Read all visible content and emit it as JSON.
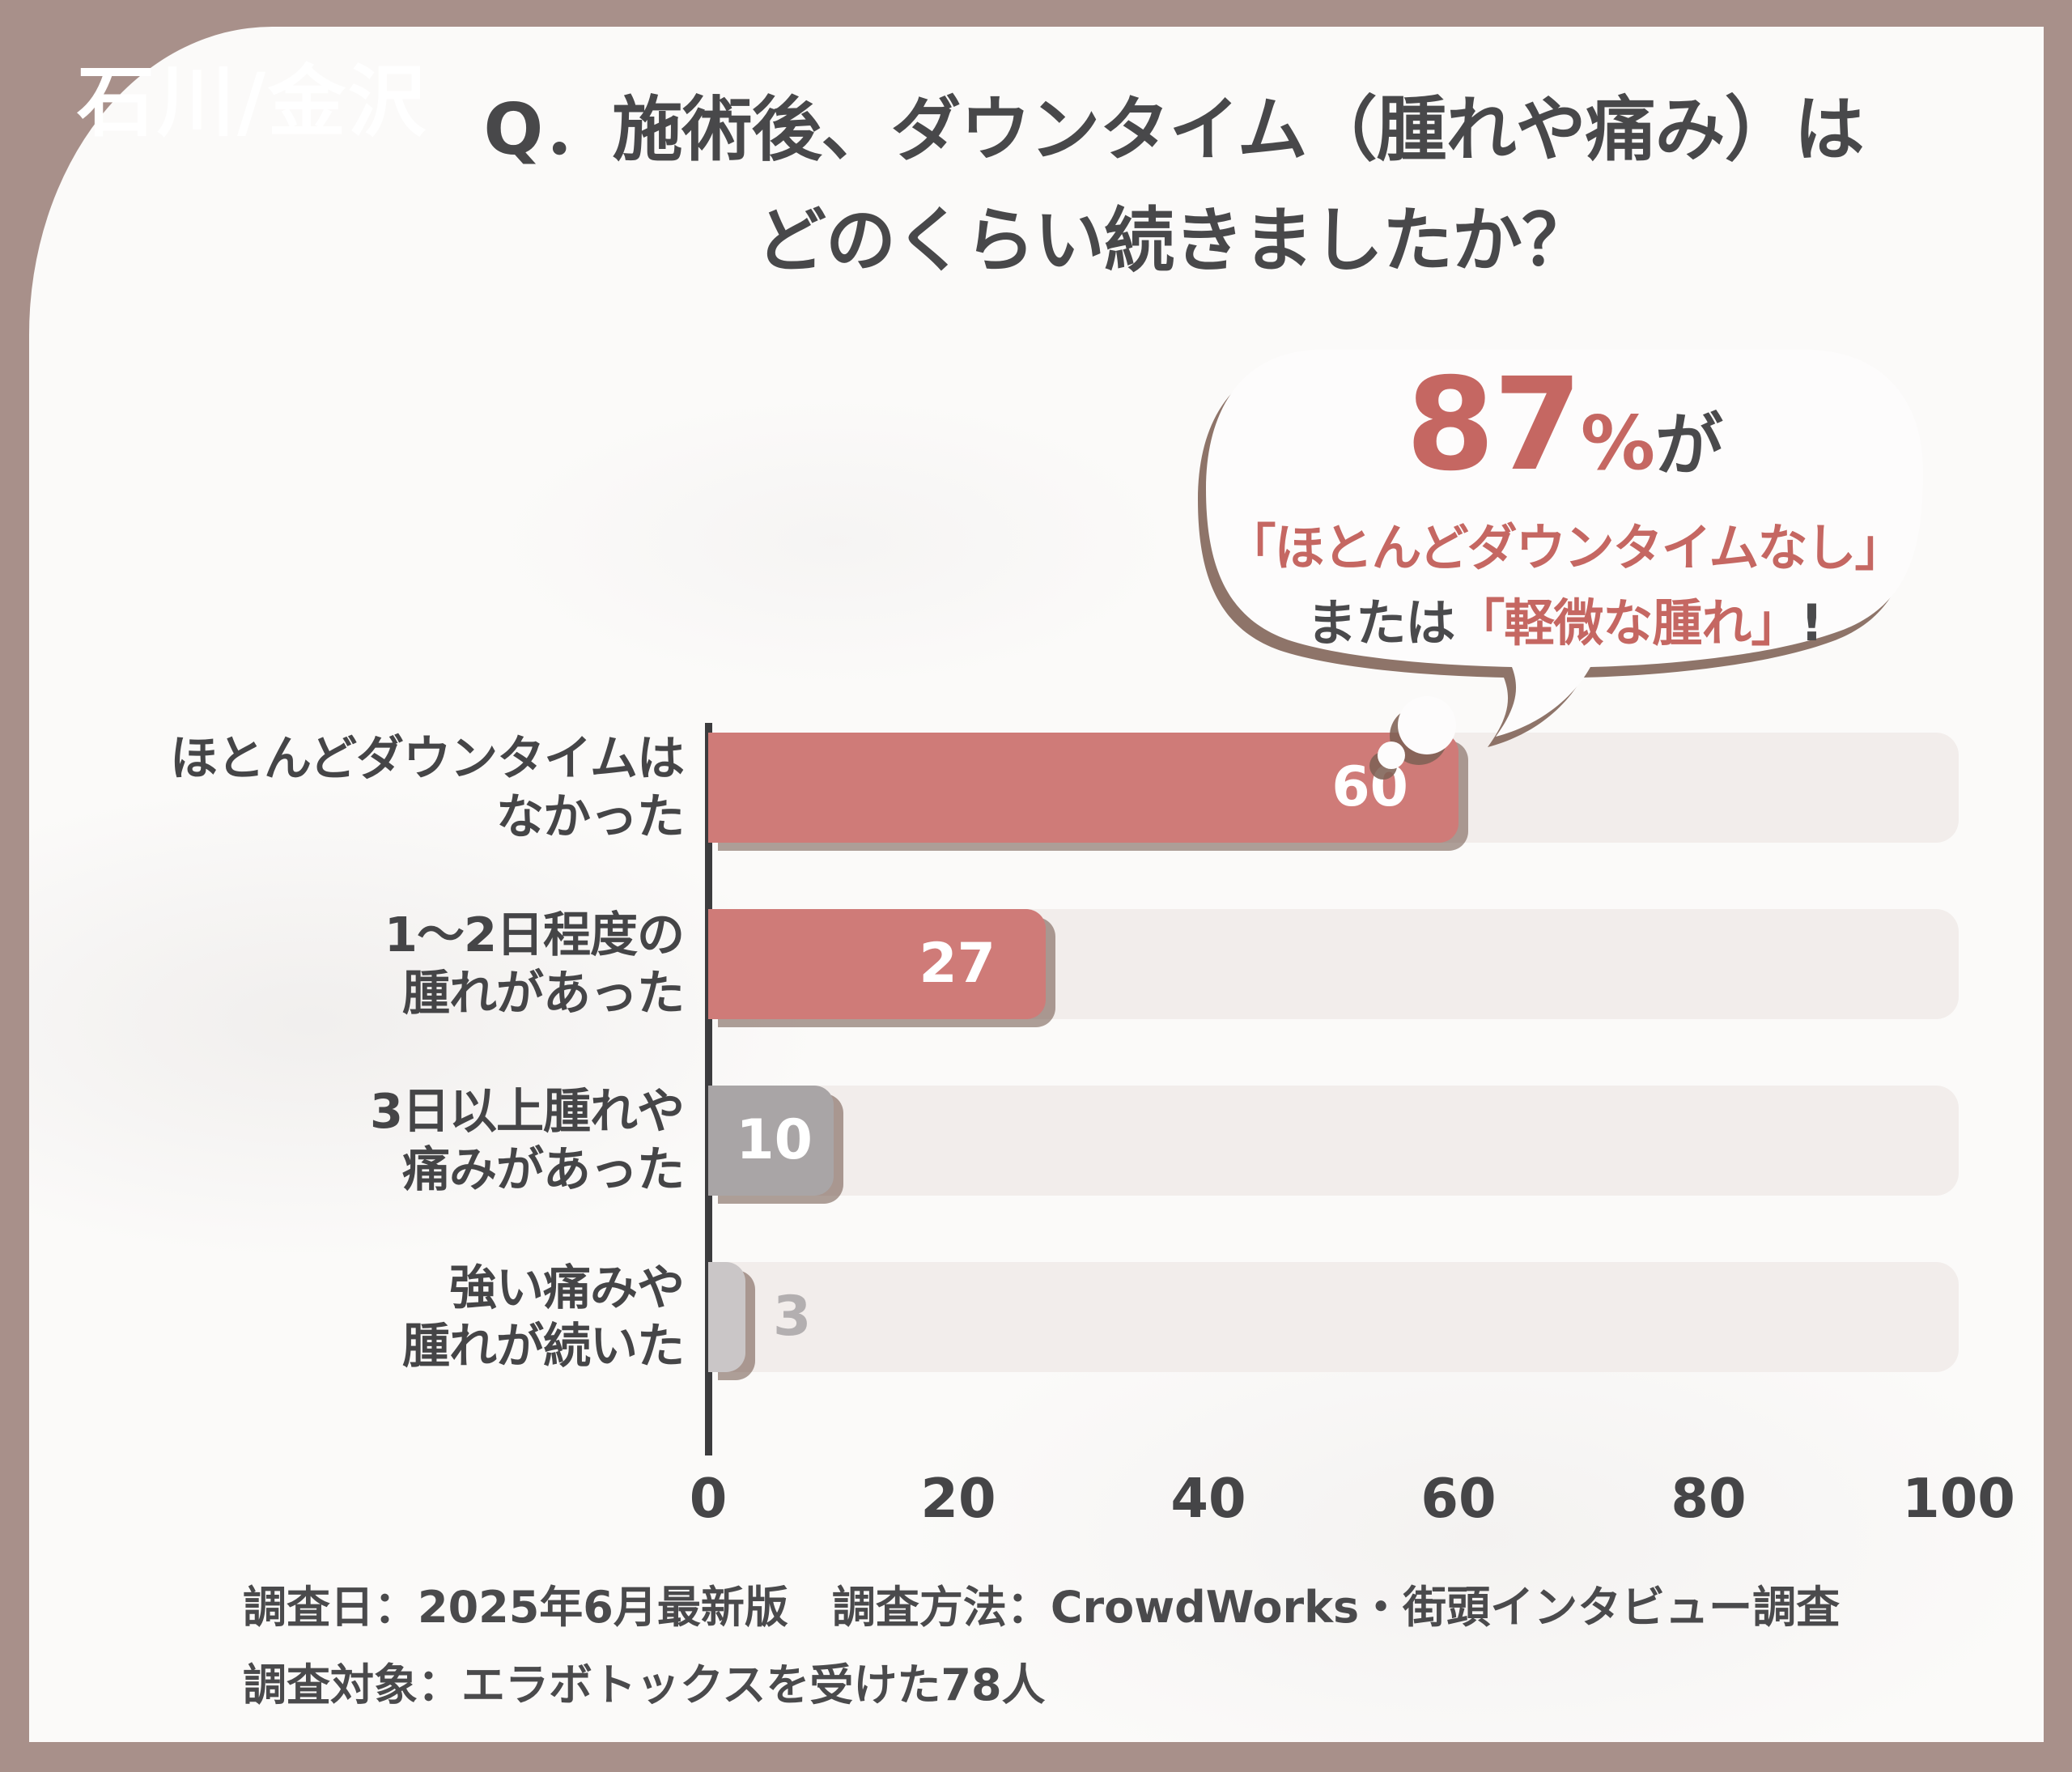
{
  "badge": {
    "label": "石川/金沢"
  },
  "title": {
    "line1": "Q．施術後、ダウンタイム（腫れや痛み）は",
    "line2": "どのくらい続きましたか？"
  },
  "callout": {
    "stat_value": "87",
    "stat_unit": "%",
    "stat_suffix": "が",
    "line2": "「ほとんどダウンタイムなし」",
    "line3_prefix": "または",
    "line3_accent": "「軽微な腫れ」",
    "line3_suffix": "!"
  },
  "chart_data": {
    "type": "bar",
    "orientation": "horizontal",
    "title": "",
    "xlabel": "",
    "ylabel": "",
    "xlim": [
      0,
      100
    ],
    "x_ticks": [
      0,
      20,
      40,
      60,
      80,
      100
    ],
    "grid": false,
    "legend": false,
    "categories": [
      "ほとんどダウンタイムはなかった",
      "1〜2日程度の腫れがあった",
      "3日以上腫れや痛みがあった",
      "強い痛みや腫れが続いた"
    ],
    "categories_lines": [
      [
        "ほとんどダウンタイムは",
        "なかった"
      ],
      [
        "1〜2日程度の",
        "腫れがあった"
      ],
      [
        "3日以上腫れや",
        "痛みがあった"
      ],
      [
        "強い痛みや",
        "腫れが続いた"
      ]
    ],
    "values": [
      60,
      27,
      10,
      3
    ],
    "bar_colors": [
      "#cf7b78",
      "#cf7b78",
      "#a9a5a6",
      "#cac6c7"
    ],
    "value_label_colors": [
      "#ffffff",
      "#ffffff",
      "#ffffff",
      "#b3afb0"
    ],
    "value_label_inside": [
      true,
      true,
      true,
      false
    ]
  },
  "footer": {
    "line1": "調査日：2025年6月最新版　調査方法：CrowdWorks・街頭インタビュー調査",
    "line2": "調査対象：エラボトックスを受けた78人"
  },
  "colors": {
    "frame": "#a8908a",
    "card": "#fbfaf9",
    "accent": "#c56762",
    "bar_red": "#cf7b78",
    "bar_gray": "#a9a5a6",
    "bar_light_gray": "#cac6c7",
    "track": "#f2edeb",
    "axis": "#3c3c3e",
    "text_dark": "#48484a",
    "bubble_shadow": "#7e6154"
  }
}
